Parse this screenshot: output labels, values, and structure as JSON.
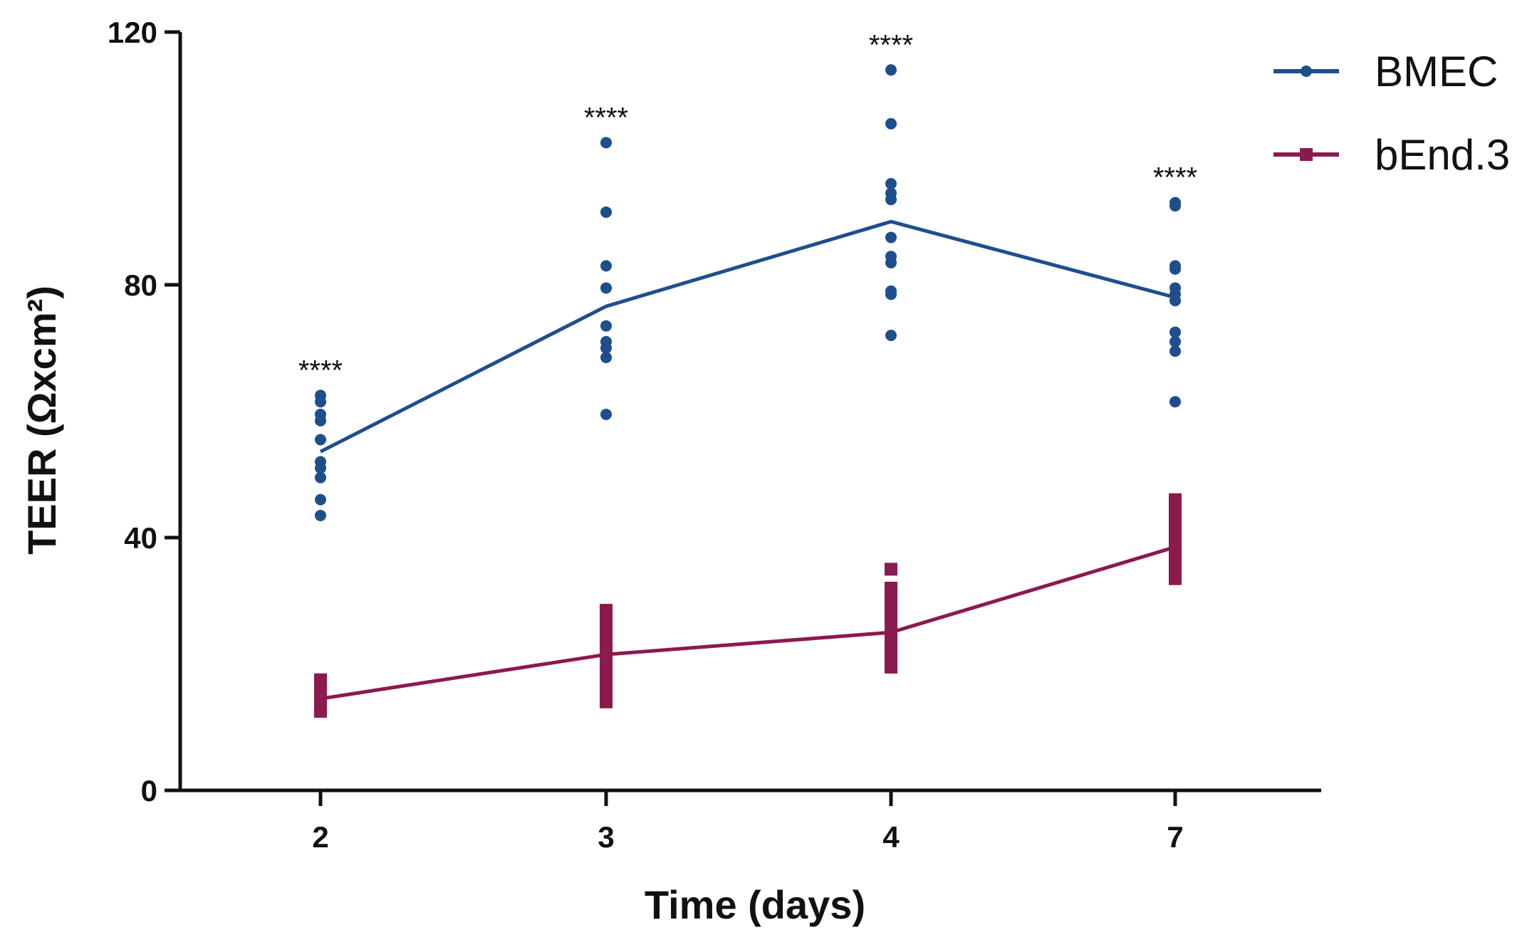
{
  "chart_data": {
    "type": "line",
    "xlabel": "Time (days)",
    "ylabel": "TEER (Ωxcm²)",
    "categories": [
      "2",
      "3",
      "4",
      "7"
    ],
    "ylim": [
      0,
      120
    ],
    "yticks": [
      0,
      40,
      80,
      120
    ],
    "grid": false,
    "legend_position": "top-right",
    "significance": [
      "****",
      "****",
      "****",
      "****"
    ],
    "series": [
      {
        "name": "BMEC",
        "color": "#1f4e8c",
        "marker": "circle",
        "means": [
          53.6,
          76.6,
          90.0,
          78.0
        ],
        "points": [
          [
            43.5,
            46.0,
            49.5,
            51.0,
            52.0,
            55.5,
            58.5,
            59.5,
            61.5,
            62.5
          ],
          [
            59.5,
            68.5,
            70.0,
            71.0,
            73.5,
            79.5,
            83.0,
            91.5,
            102.5
          ],
          [
            72.0,
            78.5,
            79.0,
            83.5,
            84.5,
            87.5,
            93.5,
            94.5,
            96.0,
            105.5,
            114.0
          ],
          [
            61.5,
            69.5,
            71.0,
            72.5,
            77.5,
            78.5,
            79.5,
            82.5,
            83.0,
            92.5,
            93.0
          ]
        ]
      },
      {
        "name": "bEnd.3",
        "color": "#8b1a4e",
        "marker": "square",
        "means": [
          14.5,
          21.5,
          25.0,
          38.5
        ],
        "points": [
          [
            12.5,
            13.5,
            14.0,
            14.5,
            15.5,
            16.5,
            17.5
          ],
          [
            14.0,
            15.5,
            17.0,
            19.0,
            21.0,
            23.0,
            25.0,
            27.0,
            28.5
          ],
          [
            19.5,
            21.0,
            22.5,
            24.0,
            25.5,
            26.5,
            28.0,
            30.0,
            32.0,
            35.0
          ],
          [
            33.5,
            35.0,
            37.0,
            38.5,
            40.0,
            42.0,
            44.0,
            46.0
          ]
        ]
      }
    ]
  }
}
